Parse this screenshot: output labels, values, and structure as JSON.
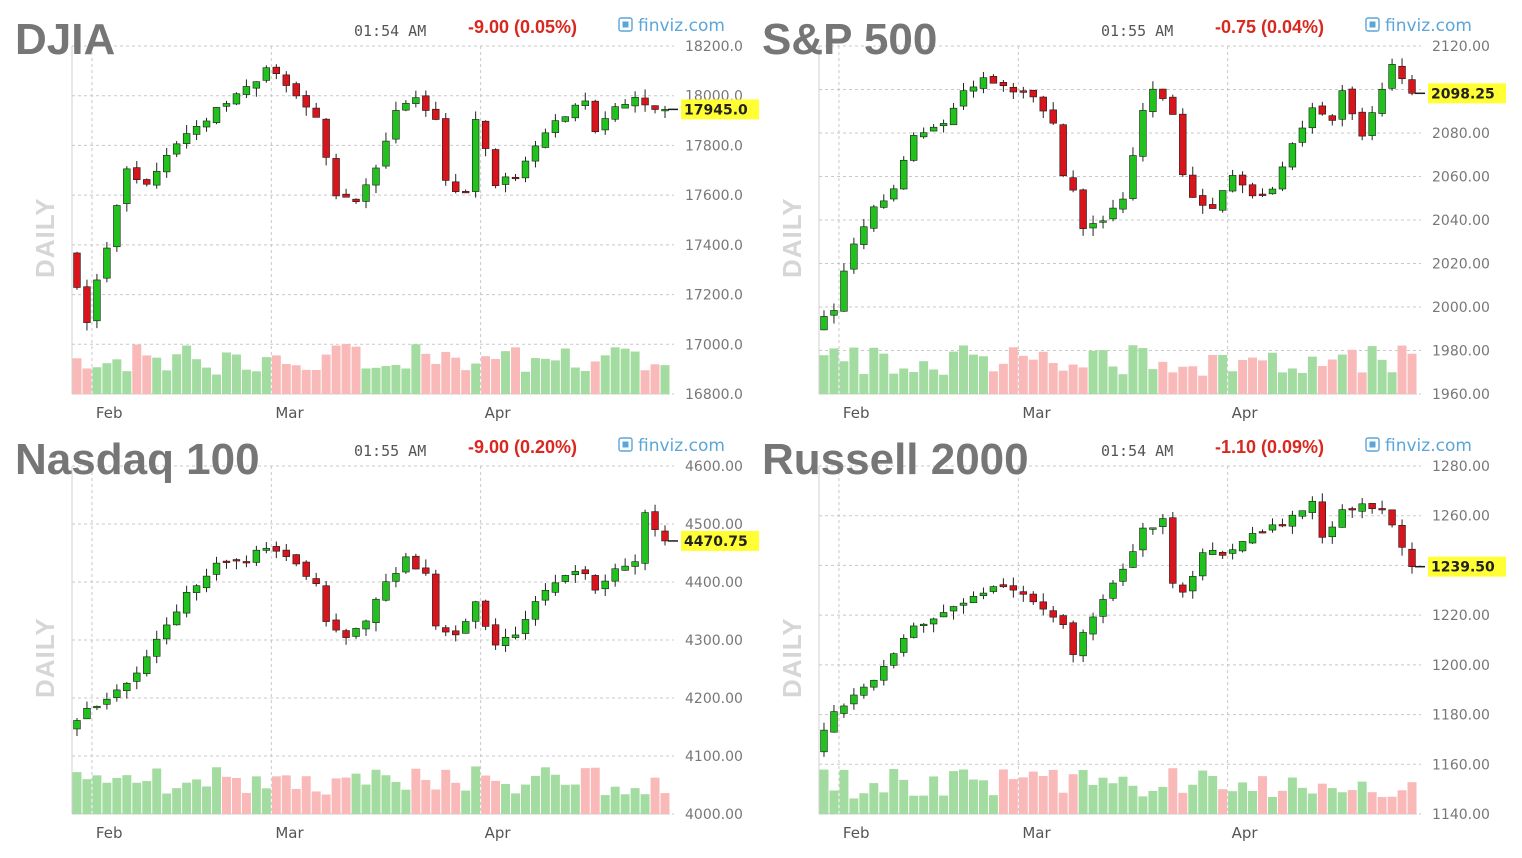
{
  "colors": {
    "up": "#21c21d",
    "down": "#d8141c",
    "volume_up": "#a3dca0",
    "volume_down": "#f9b9b9",
    "last_badge": "#ffff33",
    "wick": "#222222"
  },
  "chart_data": [
    {
      "type": "candlestick",
      "title": "DJIA",
      "time": "01:54 AM",
      "change": "-9.00 (0.05%)",
      "source": "finviz.com",
      "period_label": "DAILY",
      "ylim": [
        16800,
        18200
      ],
      "yticks": [
        "18200.0",
        "18000.0",
        "17800.0",
        "17600.0",
        "17400.0",
        "17200.0",
        "17000.0",
        "16800.0"
      ],
      "ytick_values": [
        18200,
        18000,
        17800,
        17600,
        17400,
        17200,
        17000,
        16800
      ],
      "x_months": [
        {
          "label": "Feb",
          "index": 2
        },
        {
          "label": "Mar",
          "index": 20
        },
        {
          "label": "Apr",
          "index": 41
        }
      ],
      "n": 60,
      "last_value_label": "17945.0",
      "last_value": 17945,
      "anchors": [
        [
          0,
          17380
        ],
        [
          2,
          17100
        ],
        [
          4,
          17400
        ],
        [
          6,
          17700
        ],
        [
          8,
          17650
        ],
        [
          10,
          17750
        ],
        [
          13,
          17880
        ],
        [
          17,
          18000
        ],
        [
          20,
          18100
        ],
        [
          22,
          18050
        ],
        [
          25,
          17900
        ],
        [
          27,
          17600
        ],
        [
          29,
          17580
        ],
        [
          31,
          17700
        ],
        [
          33,
          17950
        ],
        [
          35,
          18000
        ],
        [
          37,
          17900
        ],
        [
          38,
          17650
        ],
        [
          40,
          17600
        ],
        [
          41,
          17900
        ],
        [
          43,
          17650
        ],
        [
          45,
          17680
        ],
        [
          47,
          17800
        ],
        [
          49,
          17900
        ],
        [
          52,
          17980
        ],
        [
          53,
          17850
        ],
        [
          55,
          17960
        ],
        [
          57,
          17980
        ],
        [
          59,
          17945
        ]
      ],
      "volume_mid": 0.62
    },
    {
      "type": "candlestick",
      "title": "S&P 500",
      "time": "01:55 AM",
      "change": "-0.75 (0.04%)",
      "source": "finviz.com",
      "period_label": "DAILY",
      "ylim": [
        1960,
        2120
      ],
      "yticks": [
        "2120.00",
        "2100.00",
        "2080.00",
        "2060.00",
        "2040.00",
        "2020.00",
        "2000.00",
        "1980.00",
        "1960.00"
      ],
      "ytick_values": [
        2120,
        2100,
        2080,
        2060,
        2040,
        2020,
        2000,
        1980,
        1960
      ],
      "x_months": [
        {
          "label": "Feb",
          "index": 2
        },
        {
          "label": "Mar",
          "index": 20
        },
        {
          "label": "Apr",
          "index": 41
        }
      ],
      "n": 60,
      "last_value_label": "2098.25",
      "last_value": 2098.25,
      "anchors": [
        [
          0,
          1990
        ],
        [
          2,
          2000
        ],
        [
          4,
          2030
        ],
        [
          6,
          2045
        ],
        [
          8,
          2055
        ],
        [
          10,
          2080
        ],
        [
          13,
          2085
        ],
        [
          15,
          2100
        ],
        [
          17,
          2105
        ],
        [
          20,
          2100
        ],
        [
          22,
          2095
        ],
        [
          24,
          2085
        ],
        [
          25,
          2060
        ],
        [
          26,
          2055
        ],
        [
          27,
          2035
        ],
        [
          29,
          2040
        ],
        [
          31,
          2050
        ],
        [
          32,
          2070
        ],
        [
          33,
          2090
        ],
        [
          34,
          2100
        ],
        [
          36,
          2090
        ],
        [
          37,
          2060
        ],
        [
          38,
          2050
        ],
        [
          40,
          2045
        ],
        [
          42,
          2060
        ],
        [
          44,
          2050
        ],
        [
          46,
          2055
        ],
        [
          48,
          2075
        ],
        [
          50,
          2090
        ],
        [
          52,
          2085
        ],
        [
          53,
          2100
        ],
        [
          55,
          2080
        ],
        [
          57,
          2100
        ],
        [
          58,
          2110
        ],
        [
          60,
          2098
        ]
      ],
      "volume_mid": 0.6
    },
    {
      "type": "candlestick",
      "title": "Nasdaq 100",
      "time": "01:55 AM",
      "change": "-9.00 (0.20%)",
      "source": "finviz.com",
      "period_label": "DAILY",
      "ylim": [
        4000,
        4600
      ],
      "yticks": [
        "4600.00",
        "4500.00",
        "4400.00",
        "4300.00",
        "4200.00",
        "4100.00",
        "4000.00"
      ],
      "ytick_values": [
        4600,
        4500,
        4400,
        4300,
        4200,
        4100,
        4000
      ],
      "x_months": [
        {
          "label": "Feb",
          "index": 2
        },
        {
          "label": "Mar",
          "index": 20
        },
        {
          "label": "Apr",
          "index": 41
        }
      ],
      "n": 60,
      "last_value_label": "4470.75",
      "last_value": 4470.75,
      "anchors": [
        [
          0,
          4150
        ],
        [
          3,
          4190
        ],
        [
          6,
          4220
        ],
        [
          9,
          4300
        ],
        [
          12,
          4380
        ],
        [
          15,
          4430
        ],
        [
          18,
          4440
        ],
        [
          20,
          4460
        ],
        [
          23,
          4430
        ],
        [
          25,
          4400
        ],
        [
          26,
          4330
        ],
        [
          28,
          4310
        ],
        [
          30,
          4330
        ],
        [
          32,
          4400
        ],
        [
          34,
          4440
        ],
        [
          36,
          4410
        ],
        [
          37,
          4320
        ],
        [
          39,
          4310
        ],
        [
          41,
          4360
        ],
        [
          43,
          4290
        ],
        [
          45,
          4310
        ],
        [
          47,
          4370
        ],
        [
          49,
          4400
        ],
        [
          52,
          4420
        ],
        [
          53,
          4380
        ],
        [
          55,
          4420
        ],
        [
          57,
          4440
        ],
        [
          58,
          4520
        ],
        [
          60,
          4470
        ]
      ],
      "volume_mid": 0.58
    },
    {
      "type": "candlestick",
      "title": "Russell 2000",
      "time": "01:54 AM",
      "change": "-1.10 (0.09%)",
      "source": "finviz.com",
      "period_label": "DAILY",
      "ylim": [
        1140,
        1280
      ],
      "yticks": [
        "1280.00",
        "1260.00",
        "1240.00",
        "1220.00",
        "1200.00",
        "1180.00",
        "1160.00",
        "1140.00"
      ],
      "ytick_values": [
        1280,
        1260,
        1240,
        1220,
        1200,
        1180,
        1160,
        1140
      ],
      "x_months": [
        {
          "label": "Feb",
          "index": 2
        },
        {
          "label": "Mar",
          "index": 20
        },
        {
          "label": "Apr",
          "index": 41
        }
      ],
      "n": 60,
      "last_value_label": "1239.50",
      "last_value": 1239.5,
      "anchors": [
        [
          0,
          1165
        ],
        [
          2,
          1180
        ],
        [
          4,
          1188
        ],
        [
          6,
          1195
        ],
        [
          8,
          1205
        ],
        [
          10,
          1215
        ],
        [
          13,
          1222
        ],
        [
          16,
          1228
        ],
        [
          19,
          1232
        ],
        [
          21,
          1228
        ],
        [
          23,
          1222
        ],
        [
          25,
          1215
        ],
        [
          26,
          1205
        ],
        [
          28,
          1220
        ],
        [
          30,
          1232
        ],
        [
          32,
          1245
        ],
        [
          33,
          1255
        ],
        [
          35,
          1258
        ],
        [
          36,
          1232
        ],
        [
          37,
          1228
        ],
        [
          39,
          1245
        ],
        [
          41,
          1245
        ],
        [
          43,
          1250
        ],
        [
          46,
          1255
        ],
        [
          48,
          1260
        ],
        [
          50,
          1265
        ],
        [
          51,
          1250
        ],
        [
          53,
          1262
        ],
        [
          55,
          1265
        ],
        [
          57,
          1262
        ],
        [
          58,
          1255
        ],
        [
          60,
          1240
        ]
      ],
      "volume_mid": 0.55
    }
  ]
}
